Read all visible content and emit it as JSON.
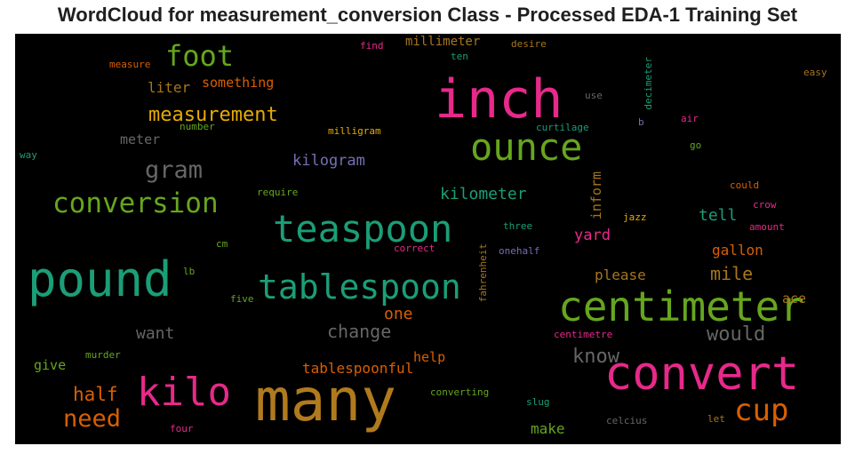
{
  "title": "WordCloud for measurement_conversion Class - Processed EDA-1 Training Set",
  "background_color": "#000000",
  "words": {
    "many": {
      "text": "many",
      "color": "#b07a1e"
    },
    "inch": {
      "text": "inch",
      "color": "#e7298a"
    },
    "convert": {
      "text": "convert",
      "color": "#e7298a"
    },
    "pound": {
      "text": "pound",
      "color": "#1b9e77"
    },
    "centimeter": {
      "text": "centimeter",
      "color": "#66a61e"
    },
    "teaspoon": {
      "text": "teaspoon",
      "color": "#1b9e77"
    },
    "tablespoon": {
      "text": "tablespoon",
      "color": "#1b9e77"
    },
    "kilo": {
      "text": "kilo",
      "color": "#e7298a"
    },
    "ounce": {
      "text": "ounce",
      "color": "#66a61e"
    },
    "conversion": {
      "text": "conversion",
      "color": "#66a61e"
    },
    "foot": {
      "text": "foot",
      "color": "#66a61e"
    },
    "cup": {
      "text": "cup",
      "color": "#d95f02"
    },
    "gram": {
      "text": "gram",
      "color": "#666666"
    },
    "measurement": {
      "text": "measurement",
      "color": "#e6ab02"
    },
    "need": {
      "text": "need",
      "color": "#d95f02"
    },
    "would": {
      "text": "would",
      "color": "#666666"
    },
    "know": {
      "text": "know",
      "color": "#666666"
    },
    "change": {
      "text": "change",
      "color": "#666666"
    },
    "half": {
      "text": "half",
      "color": "#d95f02"
    },
    "kilometer": {
      "text": "kilometer",
      "color": "#1b9e77"
    },
    "mile": {
      "text": "mile",
      "color": "#a6761d"
    },
    "kilogram": {
      "text": "kilogram",
      "color": "#7570b3"
    },
    "want": {
      "text": "want",
      "color": "#666666"
    },
    "one": {
      "text": "one",
      "color": "#d95f02"
    },
    "tell": {
      "text": "tell",
      "color": "#1b9e77"
    },
    "gallon": {
      "text": "gallon",
      "color": "#d95f02"
    },
    "yard": {
      "text": "yard",
      "color": "#e7298a"
    },
    "make": {
      "text": "make",
      "color": "#66a61e"
    },
    "tablespoonful": {
      "text": "tablespoonful",
      "color": "#d95f02"
    },
    "please": {
      "text": "please",
      "color": "#a6761d"
    },
    "liter": {
      "text": "liter",
      "color": "#a6761d"
    },
    "something": {
      "text": "something",
      "color": "#d95f02"
    },
    "meter": {
      "text": "meter",
      "color": "#666666"
    },
    "millimeter": {
      "text": "millimeter",
      "color": "#a6761d"
    },
    "help": {
      "text": "help",
      "color": "#d95f02"
    },
    "give": {
      "text": "give",
      "color": "#66a61e"
    },
    "ace": {
      "text": "ace",
      "color": "#a6761d"
    },
    "inform": {
      "text": "inform",
      "color": "#a6761d"
    },
    "milligram": {
      "text": "milligram",
      "color": "#e6ab02"
    },
    "curtilage": {
      "text": "curtilage",
      "color": "#1b9e77"
    },
    "number": {
      "text": "number",
      "color": "#66a61e"
    },
    "measure": {
      "text": "measure",
      "color": "#d95f02"
    },
    "find": {
      "text": "find",
      "color": "#e7298a"
    },
    "ten": {
      "text": "ten",
      "color": "#1b9e77"
    },
    "desire": {
      "text": "desire",
      "color": "#a6761d"
    },
    "decimeter": {
      "text": "decimeter",
      "color": "#1b9e77"
    },
    "easy": {
      "text": "easy",
      "color": "#a6761d"
    },
    "use": {
      "text": "use",
      "color": "#666666"
    },
    "b": {
      "text": "b",
      "color": "#7570b3"
    },
    "air": {
      "text": "air",
      "color": "#e7298a"
    },
    "go": {
      "text": "go",
      "color": "#66a61e"
    },
    "way": {
      "text": "way",
      "color": "#1b9e77"
    },
    "require": {
      "text": "require",
      "color": "#66a61e"
    },
    "could": {
      "text": "could",
      "color": "#d95f02"
    },
    "crow": {
      "text": "crow",
      "color": "#e7298a"
    },
    "jazz": {
      "text": "jazz",
      "color": "#e6ab02"
    },
    "amount": {
      "text": "amount",
      "color": "#e7298a"
    },
    "three": {
      "text": "three",
      "color": "#1b9e77"
    },
    "cm": {
      "text": "cm",
      "color": "#66a61e"
    },
    "correct": {
      "text": "correct",
      "color": "#e7298a"
    },
    "fahrenheit": {
      "text": "fahrenheit",
      "color": "#a6761d"
    },
    "onehalf": {
      "text": "onehalf",
      "color": "#7570b3"
    },
    "lb": {
      "text": "lb",
      "color": "#66a61e"
    },
    "five": {
      "text": "five",
      "color": "#66a61e"
    },
    "centimetre": {
      "text": "centimetre",
      "color": "#e7298a"
    },
    "murder": {
      "text": "murder",
      "color": "#66a61e"
    },
    "converting": {
      "text": "converting",
      "color": "#66a61e"
    },
    "slug": {
      "text": "slug",
      "color": "#1b9e77"
    },
    "celcius": {
      "text": "celcius",
      "color": "#666666"
    },
    "let": {
      "text": "let",
      "color": "#a6761d"
    },
    "four": {
      "text": "four",
      "color": "#e7298a"
    }
  }
}
